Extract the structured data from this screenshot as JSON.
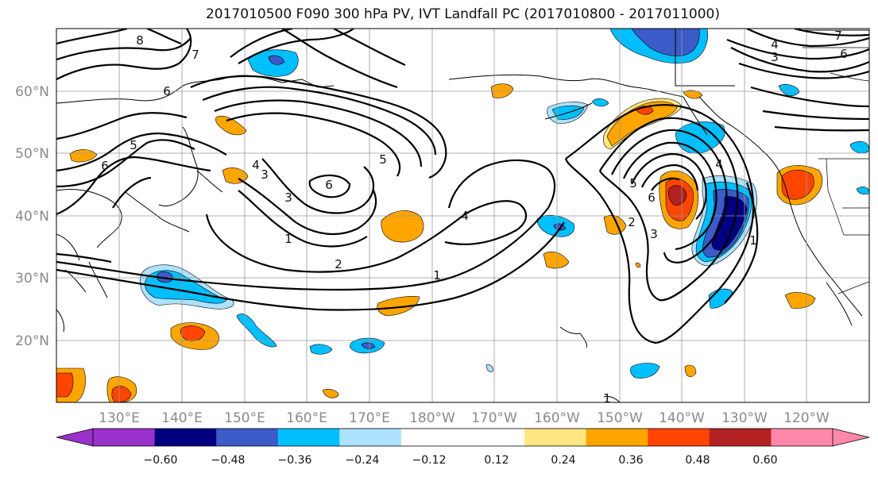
{
  "title": "2017010500 F090 300 hPa PV, IVT Landfall PC (2017010800 - 2017011000)",
  "map": {
    "lat_labels": [
      "60°N",
      "50°N",
      "40°N",
      "30°N",
      "20°N"
    ],
    "lon_labels": [
      "130°E",
      "140°E",
      "150°E",
      "160°E",
      "170°E",
      "180°W",
      "170°W",
      "160°W",
      "150°W",
      "140°W",
      "130°W",
      "120°W"
    ],
    "contour_labels": [
      "8",
      "7",
      "6",
      "5",
      "6",
      "1",
      "3",
      "4",
      "5",
      "6",
      "2",
      "1",
      "4",
      "3",
      "2",
      "5",
      "6",
      "3",
      "4",
      "1",
      "1",
      "4",
      "3",
      "6",
      "7"
    ],
    "shading_colors": {
      "neg_060": "#9932CC",
      "neg_048": "#000080",
      "neg_036": "#3A5BC8",
      "neg_024": "#00BFFF",
      "neg_012": "#AEE2FF",
      "zero": "#FFFFFF",
      "pos_012": "#FFE680",
      "pos_024": "#FFA500",
      "pos_036": "#FF4500",
      "pos_048": "#B22222",
      "pos_060": "#FF88AA"
    }
  },
  "colorbar": {
    "colors": [
      "#9932CC",
      "#000080",
      "#3A5BC8",
      "#00BFFF",
      "#AEE2FF",
      "#FFFFFF",
      "#FFFFFF",
      "#FFE680",
      "#FFA500",
      "#FF4500",
      "#B22222",
      "#FF88AA"
    ],
    "tick_labels": [
      "−0.60",
      "−0.48",
      "−0.36",
      "−0.24",
      "−0.12",
      "0.12",
      "0.24",
      "0.36",
      "0.48",
      "0.60"
    ]
  }
}
